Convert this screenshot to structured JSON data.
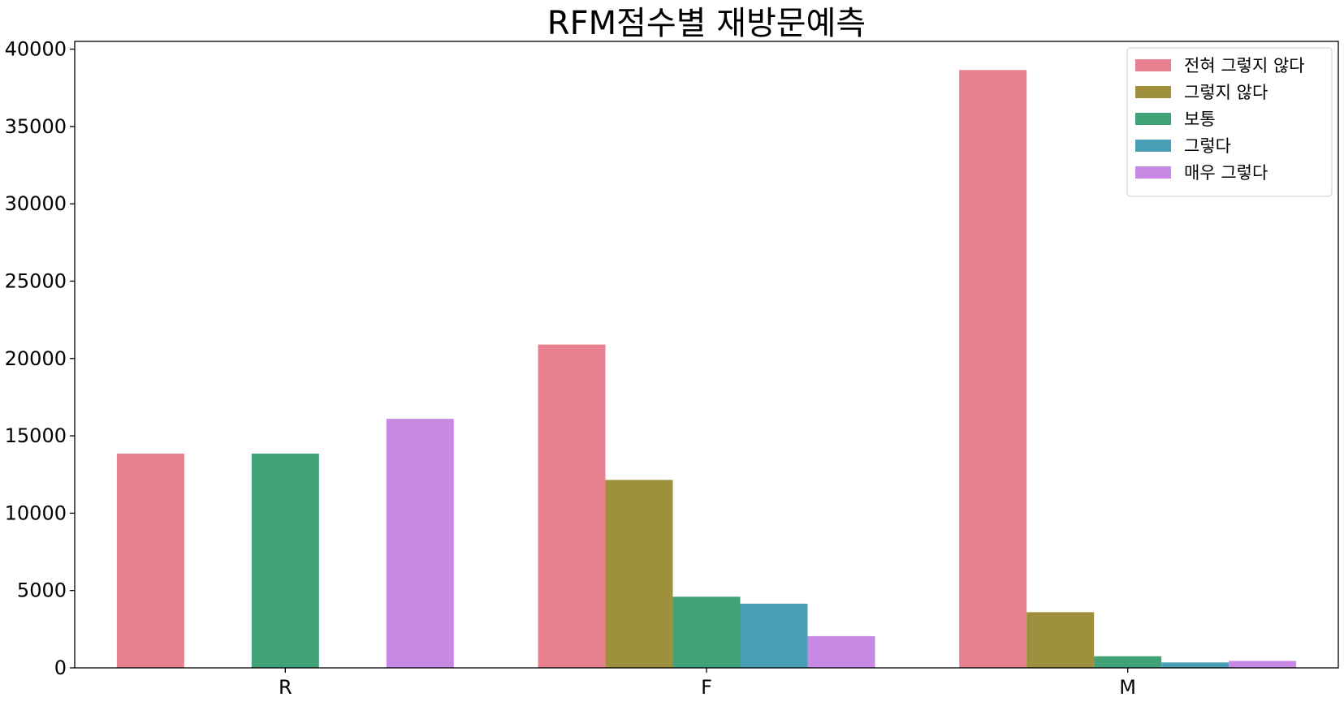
{
  "chart_data": {
    "type": "bar",
    "title": "RFM점수별 재방문예측",
    "xlabel": "",
    "ylabel": "",
    "categories": [
      "R",
      "F",
      "M"
    ],
    "ylim": [
      0,
      40500
    ],
    "yticks": [
      0,
      5000,
      10000,
      15000,
      20000,
      25000,
      30000,
      35000,
      40000
    ],
    "grid": false,
    "legend": "top-right",
    "series": [
      {
        "name": "전혀 그렇지 않다",
        "color": "#e8808f",
        "values": [
          13850,
          20900,
          38650
        ]
      },
      {
        "name": "그렇지 않다",
        "color": "#9f903e",
        "values": [
          0,
          12150,
          3600
        ]
      },
      {
        "name": "보통",
        "color": "#42a277",
        "values": [
          13850,
          4600,
          750
        ]
      },
      {
        "name": "그렇다",
        "color": "#499fb5",
        "values": [
          0,
          4150,
          350
        ]
      },
      {
        "name": "매우 그렇다",
        "color": "#c889e4",
        "values": [
          16100,
          2050,
          450
        ]
      }
    ]
  }
}
